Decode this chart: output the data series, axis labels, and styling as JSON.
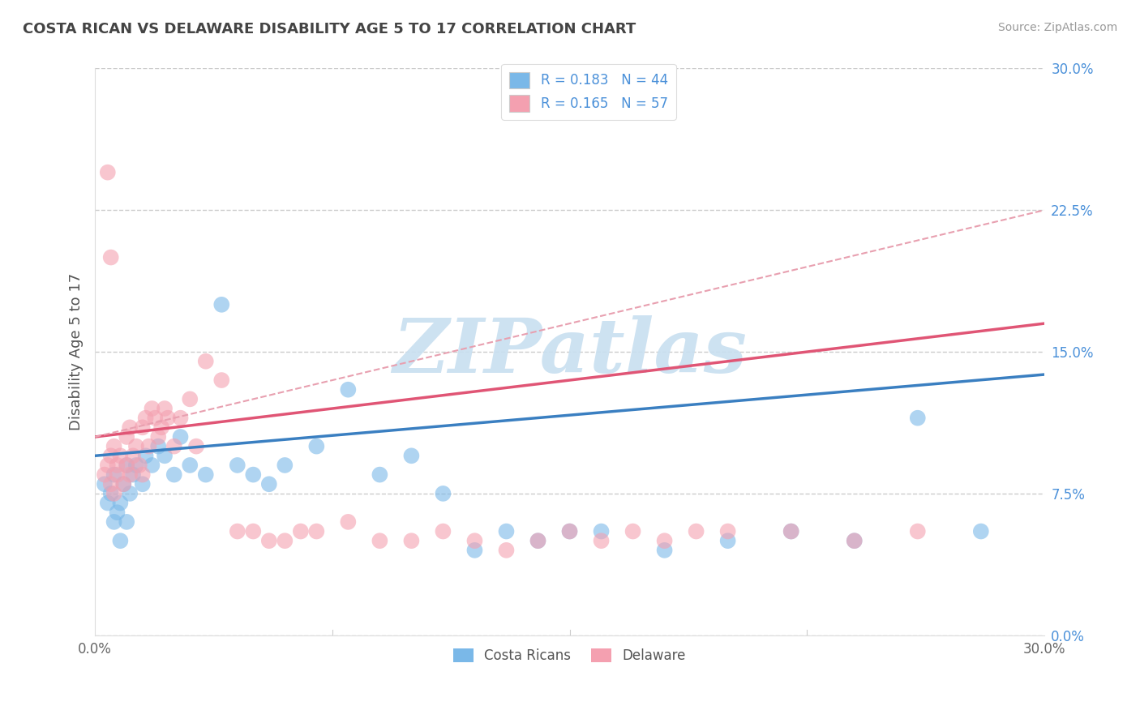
{
  "title": "COSTA RICAN VS DELAWARE DISABILITY AGE 5 TO 17 CORRELATION CHART",
  "source": "Source: ZipAtlas.com",
  "ylabel": "Disability Age 5 to 17",
  "xlim": [
    0.0,
    30.0
  ],
  "ylim": [
    0.0,
    30.0
  ],
  "yticks": [
    0.0,
    7.5,
    15.0,
    22.5,
    30.0
  ],
  "xticks": [
    0.0,
    30.0
  ],
  "legend_label1": "R = 0.183   N = 44",
  "legend_label2": "R = 0.165   N = 57",
  "legend_bottom_label1": "Costa Ricans",
  "legend_bottom_label2": "Delaware",
  "blue_color": "#7ab8e8",
  "pink_color": "#f4a0b0",
  "blue_line_color": "#3a7fc1",
  "pink_line_color": "#e05575",
  "pink_dash_color": "#e8a0b0",
  "label_color": "#4a90d9",
  "watermark_text": "ZIPatlas",
  "watermark_color": "#c8dff0",
  "title_color": "#444444",
  "source_color": "#999999",
  "blue_scatter_x": [
    0.3,
    0.5,
    0.6,
    0.7,
    0.8,
    0.9,
    1.0,
    1.0,
    1.1,
    1.2,
    1.3,
    1.5,
    1.6,
    1.8,
    2.0,
    2.2,
    2.5,
    2.7,
    3.0,
    3.5,
    4.0,
    4.5,
    5.0,
    5.5,
    6.0,
    7.0,
    8.0,
    9.0,
    10.0,
    11.0,
    12.0,
    13.0,
    14.0,
    15.0,
    16.0,
    18.0,
    20.0,
    22.0,
    24.0,
    26.0,
    28.0,
    0.4,
    0.6,
    0.8
  ],
  "blue_scatter_y": [
    8.0,
    7.5,
    8.5,
    6.5,
    7.0,
    8.0,
    6.0,
    9.0,
    7.5,
    8.5,
    9.0,
    8.0,
    9.5,
    9.0,
    10.0,
    9.5,
    8.5,
    10.5,
    9.0,
    8.5,
    17.5,
    9.0,
    8.5,
    8.0,
    9.0,
    10.0,
    13.0,
    8.5,
    9.5,
    7.5,
    4.5,
    5.5,
    5.0,
    5.5,
    5.5,
    4.5,
    5.0,
    5.5,
    5.0,
    11.5,
    5.5,
    7.0,
    6.0,
    5.0
  ],
  "pink_scatter_x": [
    0.3,
    0.4,
    0.5,
    0.5,
    0.6,
    0.6,
    0.7,
    0.7,
    0.8,
    0.9,
    1.0,
    1.0,
    1.1,
    1.1,
    1.2,
    1.3,
    1.4,
    1.5,
    1.5,
    1.6,
    1.7,
    1.8,
    1.9,
    2.0,
    2.1,
    2.2,
    2.3,
    2.5,
    2.7,
    3.0,
    3.2,
    3.5,
    4.0,
    4.5,
    5.0,
    5.5,
    6.0,
    6.5,
    7.0,
    8.0,
    9.0,
    10.0,
    11.0,
    12.0,
    13.0,
    14.0,
    15.0,
    16.0,
    17.0,
    18.0,
    19.0,
    20.0,
    22.0,
    24.0,
    26.0,
    0.4,
    0.5
  ],
  "pink_scatter_y": [
    8.5,
    9.0,
    8.0,
    9.5,
    7.5,
    10.0,
    8.5,
    9.0,
    9.5,
    8.0,
    9.0,
    10.5,
    8.5,
    11.0,
    9.5,
    10.0,
    9.0,
    11.0,
    8.5,
    11.5,
    10.0,
    12.0,
    11.5,
    10.5,
    11.0,
    12.0,
    11.5,
    10.0,
    11.5,
    12.5,
    10.0,
    14.5,
    13.5,
    5.5,
    5.5,
    5.0,
    5.0,
    5.5,
    5.5,
    6.0,
    5.0,
    5.0,
    5.5,
    5.0,
    4.5,
    5.0,
    5.5,
    5.0,
    5.5,
    5.0,
    5.5,
    5.5,
    5.5,
    5.0,
    5.5,
    24.5,
    20.0
  ],
  "blue_trend": [
    9.5,
    13.8
  ],
  "pink_solid_trend": [
    10.5,
    16.5
  ],
  "pink_dash_trend": [
    10.5,
    22.5
  ],
  "dashed_line_color": "#cccccc"
}
